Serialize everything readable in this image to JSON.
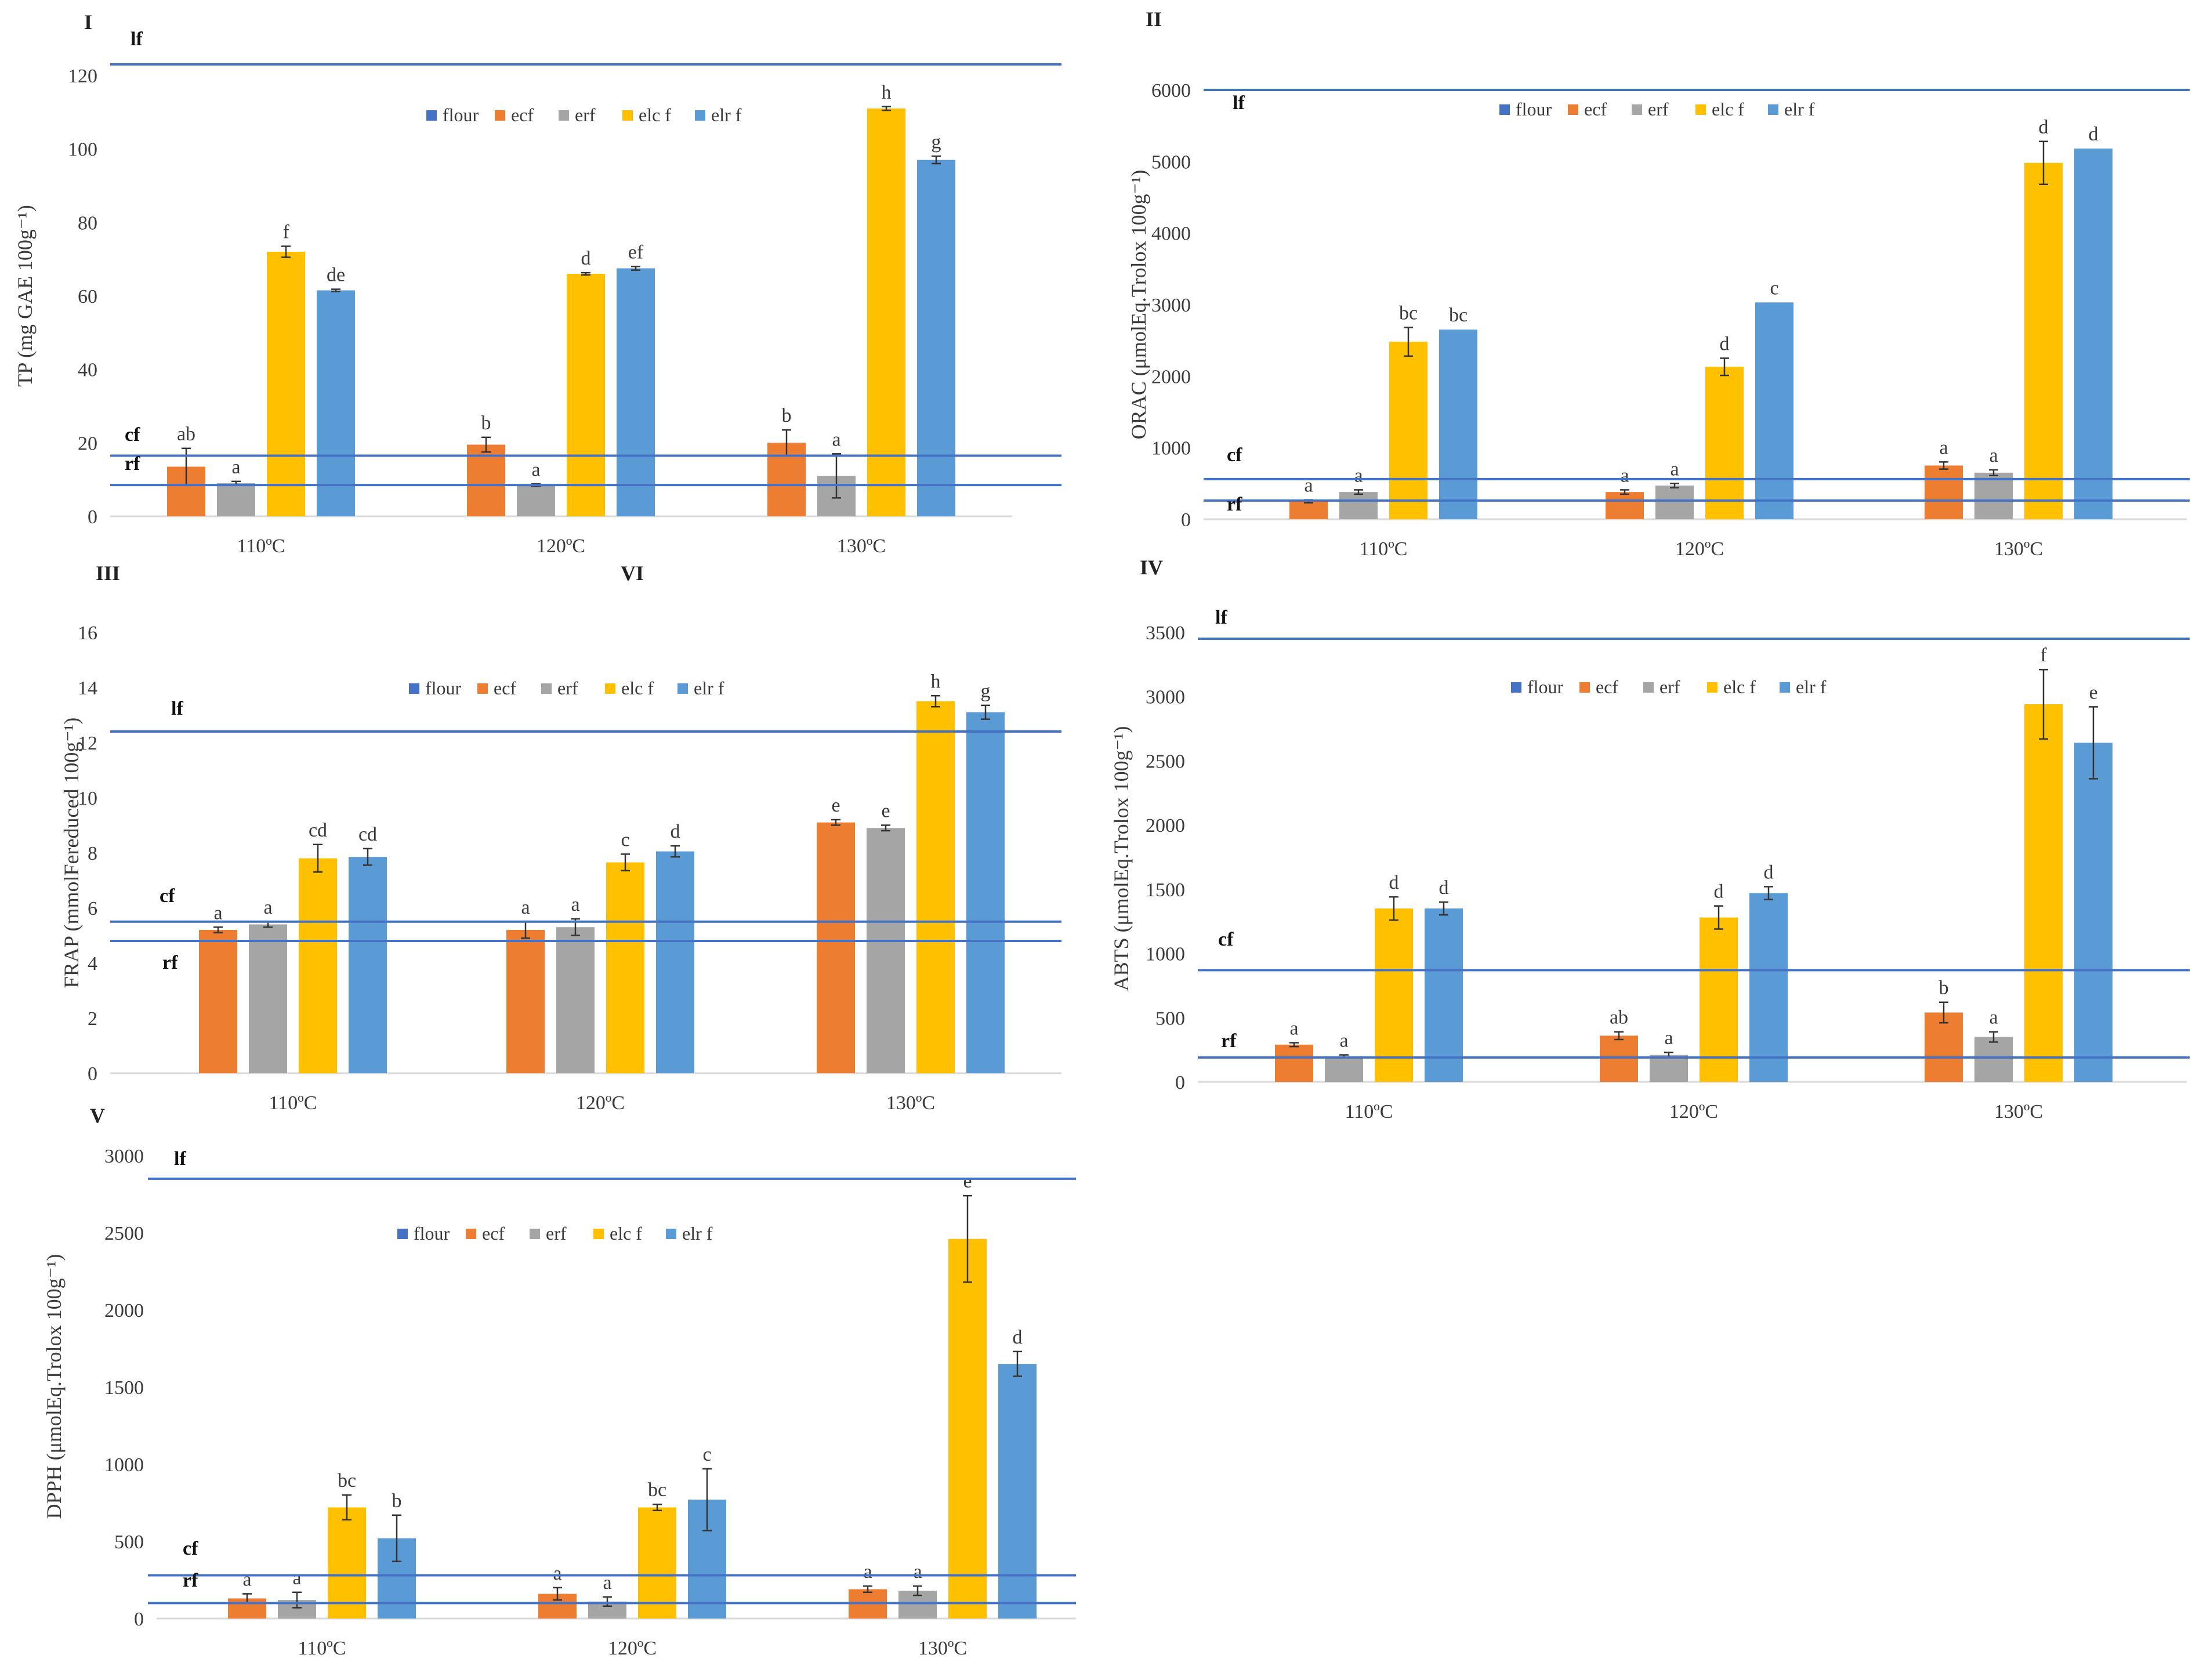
{
  "legend_colors": {
    "flour": "#4472C4",
    "ecf": "#ED7D31",
    "erf": "#A5A5A5",
    "elc f": "#FFC000",
    "elr f": "#5B9BD5"
  },
  "ref_line_color": "#4472C4",
  "series_names": [
    "flour",
    "ecf",
    "erf",
    "elc f",
    "elr f"
  ],
  "ref_labels": {
    "lf": "lf",
    "cf": "cf",
    "rf": "rf"
  },
  "chart_data": [
    {
      "id": "I",
      "panel_label": "I",
      "type": "bar",
      "ylabel": "TP (mg GAE 100g⁻¹)",
      "ylim": [
        0,
        120
      ],
      "yticks": [
        0,
        20,
        40,
        60,
        80,
        100,
        120
      ],
      "categories": [
        "110ºC",
        "120ºC",
        "130ºC"
      ],
      "series": [
        {
          "name": "ecf",
          "values": [
            13.5,
            19.5,
            20
          ],
          "errors": [
            5,
            2,
            3.5
          ],
          "letters": [
            "ab",
            "b",
            "b"
          ]
        },
        {
          "name": "erf",
          "values": [
            9,
            8.5,
            11
          ],
          "errors": [
            0.5,
            0.3,
            6
          ],
          "letters": [
            "a",
            "a",
            "a"
          ]
        },
        {
          "name": "elc f",
          "values": [
            72,
            66,
            111
          ],
          "errors": [
            1.5,
            0.3,
            0.5
          ],
          "letters": [
            "f",
            "d",
            "h"
          ]
        },
        {
          "name": "elr f",
          "values": [
            61.5,
            67.5,
            97
          ],
          "errors": [
            0.3,
            0.5,
            1
          ],
          "letters": [
            "de",
            "ef",
            "g"
          ]
        }
      ],
      "ref_lines": {
        "lf": 123,
        "cf": 16.5,
        "rf": 8.5
      }
    },
    {
      "id": "II",
      "panel_label": "II",
      "type": "bar",
      "ylabel": "ORAC (μmolEq.Trolox 100g⁻¹)",
      "ylim": [
        0,
        6000
      ],
      "yticks": [
        0,
        1000,
        2000,
        3000,
        4000,
        5000,
        6000
      ],
      "categories": [
        "110ºC",
        "120ºC",
        "130ºC"
      ],
      "series": [
        {
          "name": "ecf",
          "values": [
            250,
            380,
            750
          ],
          "errors": [
            20,
            30,
            50
          ],
          "letters": [
            "a",
            "a",
            "a"
          ]
        },
        {
          "name": "erf",
          "values": [
            380,
            470,
            650
          ],
          "errors": [
            30,
            30,
            40
          ],
          "letters": [
            "a",
            "a",
            "a"
          ]
        },
        {
          "name": "elc f",
          "values": [
            2480,
            2130,
            4980
          ],
          "errors": [
            200,
            120,
            300
          ],
          "letters": [
            "bc",
            "d",
            "d"
          ]
        },
        {
          "name": "elr f",
          "values": [
            2650,
            3030,
            5180
          ],
          "errors": [
            0,
            0,
            0
          ],
          "letters": [
            "bc",
            "c",
            "d"
          ]
        }
      ],
      "ref_lines": {
        "lf": 6000,
        "cf": 560,
        "rf": 260
      }
    },
    {
      "id": "III",
      "panel_label": "III",
      "extra_label": "VI",
      "type": "bar",
      "ylabel": "FRAP (mmolFereduced 100g⁻¹)",
      "ylim": [
        0,
        16
      ],
      "yticks": [
        0,
        2,
        4,
        6,
        8,
        10,
        12,
        14,
        16
      ],
      "categories": [
        "110ºC",
        "120ºC",
        "130ºC"
      ],
      "series": [
        {
          "name": "ecf",
          "values": [
            5.2,
            5.2,
            9.1
          ],
          "errors": [
            0.1,
            0.3,
            0.1
          ],
          "letters": [
            "a",
            "a",
            "e"
          ]
        },
        {
          "name": "erf",
          "values": [
            5.4,
            5.3,
            8.9
          ],
          "errors": [
            0.1,
            0.3,
            0.1
          ],
          "letters": [
            "a",
            "a",
            "e"
          ]
        },
        {
          "name": "elc f",
          "values": [
            7.8,
            7.65,
            13.5
          ],
          "errors": [
            0.5,
            0.3,
            0.2
          ],
          "letters": [
            "cd",
            "c",
            "h"
          ]
        },
        {
          "name": "elr f",
          "values": [
            7.85,
            8.05,
            13.1
          ],
          "errors": [
            0.3,
            0.2,
            0.25
          ],
          "letters": [
            "cd",
            "d",
            "g"
          ]
        }
      ],
      "ref_lines": {
        "lf": 12.4,
        "cf": 5.5,
        "rf": 4.8
      }
    },
    {
      "id": "IV",
      "panel_label": "IV",
      "type": "bar",
      "ylabel": "ABTS (μmolEq.Trolox 100g⁻¹)",
      "ylim": [
        0,
        3500
      ],
      "yticks": [
        0,
        500,
        1000,
        1500,
        2000,
        2500,
        3000,
        3500
      ],
      "categories": [
        "110ºC",
        "120ºC",
        "130ºC"
      ],
      "series": [
        {
          "name": "ecf",
          "values": [
            290,
            360,
            540
          ],
          "errors": [
            15,
            30,
            80
          ],
          "letters": [
            "a",
            "ab",
            "b"
          ]
        },
        {
          "name": "erf",
          "values": [
            200,
            210,
            350
          ],
          "errors": [
            10,
            20,
            40
          ],
          "letters": [
            "a",
            "a",
            "a"
          ]
        },
        {
          "name": "elc f",
          "values": [
            1350,
            1280,
            2940
          ],
          "errors": [
            90,
            90,
            270
          ],
          "letters": [
            "d",
            "d",
            "f"
          ]
        },
        {
          "name": "elr f",
          "values": [
            1350,
            1470,
            2640
          ],
          "errors": [
            50,
            50,
            280
          ],
          "letters": [
            "d",
            "d",
            "e"
          ]
        }
      ],
      "ref_lines": {
        "lf": 3450,
        "cf": 870,
        "rf": 190
      }
    },
    {
      "id": "V",
      "panel_label": "V",
      "type": "bar",
      "ylabel": "DPPH (μmolEq.Trolox 100g⁻¹)",
      "ylim": [
        0,
        3000
      ],
      "yticks": [
        0,
        500,
        1000,
        1500,
        2000,
        2500,
        3000
      ],
      "categories": [
        "110ºC",
        "120ºC",
        "130ºC"
      ],
      "series": [
        {
          "name": "ecf",
          "values": [
            130,
            160,
            190
          ],
          "errors": [
            30,
            40,
            20
          ],
          "letters": [
            "a",
            "a",
            "a"
          ]
        },
        {
          "name": "erf",
          "values": [
            120,
            110,
            180
          ],
          "errors": [
            50,
            30,
            30
          ],
          "letters": [
            "a",
            "a",
            "a"
          ]
        },
        {
          "name": "elc f",
          "values": [
            720,
            720,
            2460
          ],
          "errors": [
            80,
            20,
            280
          ],
          "letters": [
            "bc",
            "bc",
            "e"
          ]
        },
        {
          "name": "elr f",
          "values": [
            520,
            770,
            1650
          ],
          "errors": [
            150,
            200,
            80
          ],
          "letters": [
            "b",
            "c",
            "d"
          ]
        }
      ],
      "ref_lines": {
        "lf": 2850,
        "cf": 280,
        "rf": 100
      }
    }
  ]
}
